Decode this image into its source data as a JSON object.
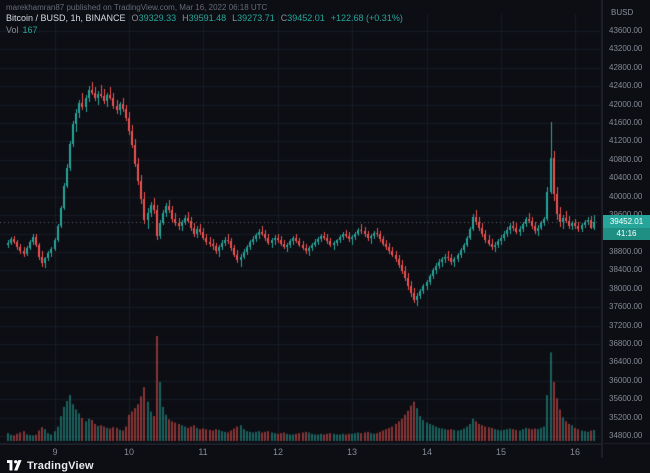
{
  "watermark": "marekhamran87 published on TradingView.com, Mar 16, 2022 06:18 UTC",
  "legend": {
    "symbol": "Bitcoin / BUSD, 1h, BINANCE",
    "o_label": "O",
    "o_value": "39329.33",
    "h_label": "H",
    "h_value": "39591.48",
    "l_label": "L",
    "l_value": "39273.71",
    "c_label": "C",
    "c_value": "39452.01",
    "change": "+122.68 (+0.31%)",
    "vol_label": "Vol",
    "vol_value": "167"
  },
  "price_axis": {
    "currency": "BUSD",
    "labels": [
      "43600.00",
      "43200.00",
      "42800.00",
      "42400.00",
      "42000.00",
      "41600.00",
      "41200.00",
      "40800.00",
      "40400.00",
      "40000.00",
      "39600.00",
      "39200.00",
      "38800.00",
      "38400.00",
      "38000.00",
      "37600.00",
      "37200.00",
      "36800.00",
      "36400.00",
      "36000.00",
      "35600.00",
      "35200.00",
      "34800.00"
    ],
    "last_price": "39452.01",
    "countdown": "41:16"
  },
  "time_axis": {
    "labels": [
      "9",
      "10",
      "11",
      "12",
      "13",
      "14",
      "15",
      "16"
    ]
  },
  "footer": {
    "brand": "TradingView"
  },
  "colors": {
    "background": "#0c0e14",
    "up": "#26a69a",
    "down": "#ef5350",
    "grid": "#161b24",
    "axis_line": "#1c212b",
    "axis_text": "#868b94",
    "last_price_line": "#9598a1",
    "badge": "#26a69a"
  },
  "chart_data": {
    "type": "candlestick",
    "title": "Bitcoin / BUSD, 1h, BINANCE",
    "timeframe": "1h",
    "exchange": "BINANCE",
    "pair": "Bitcoin / BUSD",
    "current_ohlc": {
      "open": 39329.33,
      "high": 39591.48,
      "low": 39273.71,
      "close": 39452.01,
      "change": 122.68,
      "change_pct": 0.31,
      "volume": 167
    },
    "price_axis_ticks": [
      43600,
      43200,
      42800,
      42400,
      42000,
      41600,
      41200,
      40800,
      40400,
      40000,
      39600,
      39200,
      38800,
      38400,
      38000,
      37600,
      37200,
      36800,
      36400,
      36000,
      35600,
      35200,
      34800
    ],
    "x_tick_labels": [
      "9",
      "10",
      "11",
      "12",
      "13",
      "14",
      "15",
      "16"
    ],
    "day_start_indices": [
      15,
      39,
      63,
      87,
      111,
      135,
      159,
      183
    ],
    "visible_price_range": [
      34650,
      43950
    ],
    "candles_format": [
      "open",
      "high",
      "low",
      "close",
      "volume"
    ],
    "candles": [
      [
        38950,
        39050,
        38880,
        38990,
        120
      ],
      [
        38990,
        39120,
        38940,
        39080,
        95
      ],
      [
        39080,
        39150,
        38980,
        39010,
        85
      ],
      [
        39010,
        39060,
        38850,
        38900,
        110
      ],
      [
        38900,
        38980,
        38760,
        38820,
        130
      ],
      [
        38820,
        38900,
        38700,
        38760,
        150
      ],
      [
        38760,
        38920,
        38720,
        38880,
        100
      ],
      [
        38880,
        39060,
        38840,
        39020,
        90
      ],
      [
        39020,
        39180,
        38960,
        39120,
        85
      ],
      [
        39120,
        39200,
        38900,
        38960,
        95
      ],
      [
        38960,
        39000,
        38620,
        38700,
        160
      ],
      [
        38700,
        38820,
        38480,
        38560,
        210
      ],
      [
        38560,
        38700,
        38440,
        38660,
        180
      ],
      [
        38660,
        38820,
        38600,
        38780,
        120
      ],
      [
        38780,
        38900,
        38700,
        38860,
        100
      ],
      [
        38860,
        39100,
        38820,
        39060,
        150
      ],
      [
        39060,
        39400,
        39020,
        39360,
        220
      ],
      [
        39360,
        39800,
        39330,
        39760,
        380
      ],
      [
        39760,
        40300,
        39720,
        40240,
        520
      ],
      [
        40240,
        40700,
        40180,
        40620,
        610
      ],
      [
        40620,
        41200,
        40560,
        41140,
        700
      ],
      [
        41140,
        41650,
        41080,
        41580,
        560
      ],
      [
        41580,
        41900,
        41400,
        41820,
        480
      ],
      [
        41820,
        42100,
        41700,
        42040,
        420
      ],
      [
        42040,
        42250,
        41880,
        41950,
        350
      ],
      [
        41950,
        42200,
        41850,
        42150,
        300
      ],
      [
        42150,
        42400,
        42050,
        42320,
        340
      ],
      [
        42320,
        42500,
        42200,
        42260,
        320
      ],
      [
        42260,
        42380,
        42080,
        42140,
        260
      ],
      [
        42140,
        42300,
        42000,
        42240,
        230
      ],
      [
        42240,
        42420,
        42150,
        42180,
        240
      ],
      [
        42180,
        42350,
        42020,
        42080,
        220
      ],
      [
        42080,
        42250,
        41950,
        42200,
        200
      ],
      [
        42200,
        42380,
        42100,
        42150,
        190
      ],
      [
        42150,
        42250,
        41900,
        41960,
        210
      ],
      [
        41960,
        42100,
        41800,
        41880,
        200
      ],
      [
        41880,
        42050,
        41780,
        42010,
        170
      ],
      [
        42010,
        42150,
        41850,
        41900,
        160
      ],
      [
        41900,
        42000,
        41650,
        41720,
        220
      ],
      [
        41720,
        41850,
        41350,
        41420,
        400
      ],
      [
        41420,
        41560,
        41050,
        41120,
        450
      ],
      [
        41120,
        41250,
        40650,
        40720,
        500
      ],
      [
        40720,
        40850,
        40250,
        40330,
        560
      ],
      [
        40330,
        40480,
        39850,
        39950,
        680
      ],
      [
        39950,
        40100,
        39400,
        39500,
        820
      ],
      [
        39500,
        39750,
        39300,
        39650,
        600
      ],
      [
        39650,
        39880,
        39550,
        39820,
        450
      ],
      [
        39820,
        39980,
        39620,
        39700,
        380
      ],
      [
        39700,
        39820,
        39050,
        39150,
        1600
      ],
      [
        39150,
        39500,
        39080,
        39430,
        900
      ],
      [
        39430,
        39700,
        39380,
        39640,
        520
      ],
      [
        39640,
        39860,
        39560,
        39800,
        400
      ],
      [
        39800,
        39930,
        39650,
        39720,
        330
      ],
      [
        39720,
        39800,
        39460,
        39520,
        300
      ],
      [
        39520,
        39640,
        39360,
        39420,
        280
      ],
      [
        39420,
        39540,
        39280,
        39360,
        260
      ],
      [
        39360,
        39500,
        39260,
        39460,
        240
      ],
      [
        39460,
        39600,
        39380,
        39540,
        220
      ],
      [
        39540,
        39660,
        39420,
        39480,
        200
      ],
      [
        39480,
        39560,
        39260,
        39320,
        220
      ],
      [
        39320,
        39430,
        39130,
        39200,
        240
      ],
      [
        39200,
        39360,
        39100,
        39300,
        200
      ],
      [
        39300,
        39400,
        39160,
        39240,
        180
      ],
      [
        39240,
        39320,
        39050,
        39100,
        190
      ],
      [
        39100,
        39200,
        38950,
        39020,
        180
      ],
      [
        39020,
        39130,
        38900,
        38980,
        170
      ],
      [
        38980,
        39080,
        38850,
        38920,
        160
      ],
      [
        38920,
        39000,
        38760,
        38820,
        180
      ],
      [
        38820,
        38940,
        38700,
        38900,
        170
      ],
      [
        38900,
        39050,
        38840,
        39000,
        150
      ],
      [
        39000,
        39120,
        38920,
        39060,
        140
      ],
      [
        39060,
        39180,
        38980,
        39040,
        130
      ],
      [
        39040,
        39100,
        38820,
        38880,
        160
      ],
      [
        38880,
        38960,
        38680,
        38740,
        190
      ],
      [
        38740,
        38850,
        38560,
        38620,
        220
      ],
      [
        38620,
        38750,
        38480,
        38700,
        240
      ],
      [
        38700,
        38860,
        38640,
        38800,
        180
      ],
      [
        38800,
        38950,
        38740,
        38900,
        150
      ],
      [
        38900,
        39060,
        38850,
        39010,
        140
      ],
      [
        39010,
        39150,
        38950,
        39090,
        130
      ],
      [
        39090,
        39220,
        39020,
        39160,
        140
      ],
      [
        39160,
        39300,
        39080,
        39240,
        150
      ],
      [
        39240,
        39360,
        39140,
        39200,
        130
      ],
      [
        39200,
        39280,
        39040,
        39100,
        140
      ],
      [
        39100,
        39180,
        38940,
        39000,
        150
      ],
      [
        39000,
        39100,
        38880,
        39050,
        130
      ],
      [
        39050,
        39160,
        38960,
        39110,
        120
      ],
      [
        39110,
        39200,
        39000,
        39060,
        110
      ],
      [
        39060,
        39140,
        38920,
        38980,
        120
      ],
      [
        38980,
        39060,
        38860,
        38910,
        130
      ],
      [
        38910,
        39000,
        38800,
        38950,
        110
      ],
      [
        38950,
        39080,
        38890,
        39030,
        100
      ],
      [
        39030,
        39140,
        38960,
        39100,
        100
      ],
      [
        39100,
        39180,
        38990,
        39040,
        110
      ],
      [
        39040,
        39110,
        38900,
        38960,
        120
      ],
      [
        38960,
        39040,
        38840,
        38890,
        130
      ],
      [
        38890,
        38970,
        38760,
        38820,
        140
      ],
      [
        38820,
        38920,
        38720,
        38880,
        130
      ],
      [
        38880,
        38990,
        38820,
        38950,
        110
      ],
      [
        38950,
        39070,
        38900,
        39020,
        100
      ],
      [
        39020,
        39130,
        38950,
        39080,
        100
      ],
      [
        39080,
        39180,
        39010,
        39140,
        110
      ],
      [
        39140,
        39240,
        39060,
        39110,
        100
      ],
      [
        39110,
        39190,
        38980,
        39030,
        110
      ],
      [
        39030,
        39110,
        38900,
        38950,
        120
      ],
      [
        38950,
        39030,
        38850,
        38990,
        110
      ],
      [
        38990,
        39090,
        38930,
        39050,
        100
      ],
      [
        39050,
        39160,
        38990,
        39120,
        100
      ],
      [
        39120,
        39230,
        39060,
        39180,
        110
      ],
      [
        39180,
        39280,
        39100,
        39150,
        100
      ],
      [
        39150,
        39230,
        39020,
        39080,
        110
      ],
      [
        39080,
        39170,
        38960,
        39120,
        110
      ],
      [
        39120,
        39240,
        39060,
        39200,
        120
      ],
      [
        39200,
        39330,
        39140,
        39280,
        130
      ],
      [
        39280,
        39400,
        39200,
        39250,
        120
      ],
      [
        39250,
        39340,
        39120,
        39180,
        130
      ],
      [
        39180,
        39260,
        39040,
        39100,
        140
      ],
      [
        39100,
        39190,
        38980,
        39150,
        120
      ],
      [
        39150,
        39260,
        39080,
        39220,
        110
      ],
      [
        39220,
        39320,
        39130,
        39180,
        120
      ],
      [
        39180,
        39250,
        39020,
        39070,
        140
      ],
      [
        39070,
        39150,
        38920,
        38980,
        160
      ],
      [
        38980,
        39060,
        38840,
        38900,
        180
      ],
      [
        38900,
        38990,
        38760,
        38820,
        200
      ],
      [
        38820,
        38910,
        38680,
        38740,
        220
      ],
      [
        38740,
        38830,
        38580,
        38640,
        260
      ],
      [
        38640,
        38730,
        38460,
        38520,
        300
      ],
      [
        38520,
        38620,
        38320,
        38390,
        340
      ],
      [
        38390,
        38490,
        38160,
        38230,
        400
      ],
      [
        38230,
        38340,
        37980,
        38060,
        460
      ],
      [
        38060,
        38170,
        37820,
        37900,
        540
      ],
      [
        37900,
        38010,
        37680,
        37760,
        600
      ],
      [
        37760,
        37900,
        37620,
        37850,
        500
      ],
      [
        37850,
        38000,
        37780,
        37950,
        380
      ],
      [
        37950,
        38100,
        37880,
        38050,
        320
      ],
      [
        38050,
        38200,
        37980,
        38150,
        280
      ],
      [
        38150,
        38320,
        38090,
        38280,
        260
      ],
      [
        38280,
        38450,
        38220,
        38400,
        240
      ],
      [
        38400,
        38560,
        38330,
        38500,
        220
      ],
      [
        38500,
        38640,
        38420,
        38580,
        200
      ],
      [
        38580,
        38700,
        38480,
        38640,
        190
      ],
      [
        38640,
        38760,
        38550,
        38700,
        180
      ],
      [
        38700,
        38820,
        38600,
        38660,
        170
      ],
      [
        38660,
        38750,
        38520,
        38580,
        180
      ],
      [
        38580,
        38690,
        38480,
        38640,
        170
      ],
      [
        38640,
        38780,
        38580,
        38730,
        160
      ],
      [
        38730,
        38880,
        38670,
        38840,
        170
      ],
      [
        38840,
        39000,
        38780,
        38950,
        190
      ],
      [
        38950,
        39150,
        38900,
        39100,
        220
      ],
      [
        39100,
        39350,
        39050,
        39300,
        260
      ],
      [
        39300,
        39620,
        39250,
        39550,
        340
      ],
      [
        39550,
        39700,
        39380,
        39450,
        300
      ],
      [
        39450,
        39560,
        39260,
        39320,
        260
      ],
      [
        39320,
        39420,
        39120,
        39180,
        240
      ],
      [
        39180,
        39280,
        39000,
        39060,
        220
      ],
      [
        39060,
        39170,
        38920,
        38980,
        210
      ],
      [
        38980,
        39080,
        38840,
        38900,
        200
      ],
      [
        38900,
        39010,
        38800,
        38960,
        180
      ],
      [
        38960,
        39080,
        38890,
        39040,
        170
      ],
      [
        39040,
        39160,
        38960,
        39110,
        160
      ],
      [
        39110,
        39250,
        39040,
        39200,
        170
      ],
      [
        39200,
        39340,
        39120,
        39280,
        180
      ],
      [
        39280,
        39420,
        39200,
        39360,
        190
      ],
      [
        39360,
        39480,
        39260,
        39320,
        180
      ],
      [
        39320,
        39430,
        39180,
        39240,
        170
      ],
      [
        39240,
        39360,
        39140,
        39300,
        160
      ],
      [
        39300,
        39450,
        39240,
        39400,
        180
      ],
      [
        39400,
        39560,
        39340,
        39510,
        200
      ],
      [
        39510,
        39640,
        39420,
        39480,
        190
      ],
      [
        39480,
        39560,
        39300,
        39360,
        180
      ],
      [
        39360,
        39450,
        39200,
        39260,
        190
      ],
      [
        39260,
        39380,
        39140,
        39330,
        180
      ],
      [
        39330,
        39480,
        39280,
        39430,
        200
      ],
      [
        39430,
        39560,
        39370,
        39520,
        220
      ],
      [
        39520,
        40200,
        39480,
        40100,
        700
      ],
      [
        40100,
        41620,
        40050,
        40850,
        1350
      ],
      [
        40850,
        41000,
        39900,
        40050,
        900
      ],
      [
        40050,
        40200,
        39500,
        39620,
        650
      ],
      [
        39620,
        39780,
        39350,
        39450,
        480
      ],
      [
        39450,
        39600,
        39300,
        39540,
        360
      ],
      [
        39540,
        39680,
        39420,
        39480,
        300
      ],
      [
        39480,
        39580,
        39300,
        39360,
        260
      ],
      [
        39360,
        39480,
        39280,
        39420,
        240
      ],
      [
        39420,
        39520,
        39300,
        39360,
        200
      ],
      [
        39360,
        39450,
        39240,
        39300,
        180
      ],
      [
        39300,
        39420,
        39240,
        39380,
        160
      ],
      [
        39380,
        39500,
        39320,
        39450,
        150
      ],
      [
        39450,
        39560,
        39380,
        39500,
        140
      ],
      [
        39500,
        39580,
        39290,
        39330,
        160
      ],
      [
        39329.33,
        39591.48,
        39273.71,
        39452.01,
        167
      ]
    ]
  }
}
